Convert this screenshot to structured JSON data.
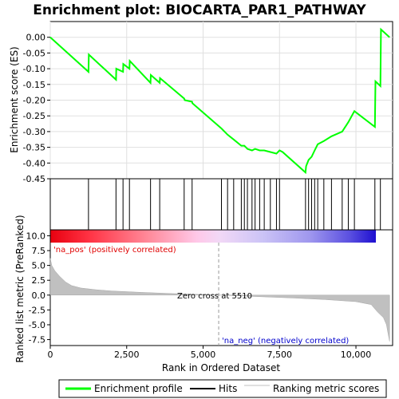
{
  "chart_data": [
    {
      "type": "line",
      "title": "Enrichment plot: BIOCARTA_PAR1_PATHWAY",
      "ylabel": "Enrichment score (ES)",
      "ylim": [
        -0.45,
        0.05
      ],
      "yticks": [
        0.0,
        -0.05,
        -0.1,
        -0.15,
        -0.2,
        -0.25,
        -0.3,
        -0.35,
        -0.4,
        -0.45
      ],
      "ytick_labels": [
        "0.00",
        "-0.05",
        "-0.10",
        "-0.15",
        "-0.20",
        "-0.25",
        "-0.30",
        "-0.35",
        "-0.40",
        "-0.45"
      ],
      "xlim": [
        0,
        11200
      ],
      "grid": true,
      "series": [
        {
          "name": "Enrichment profile",
          "color": "#00ff00",
          "x": [
            0,
            1250,
            1260,
            2150,
            2160,
            2380,
            2390,
            2590,
            2600,
            3280,
            3290,
            3580,
            3590,
            4380,
            4400,
            4640,
            4650,
            5600,
            5800,
            6000,
            6250,
            6350,
            6450,
            6600,
            6700,
            6850,
            7000,
            7200,
            7400,
            7500,
            7600,
            8350,
            8370,
            8450,
            8550,
            8650,
            8750,
            8950,
            9200,
            9550,
            9750,
            9950,
            10620,
            10640,
            10800,
            10820,
            11100
          ],
          "y": [
            0.0,
            -0.11,
            -0.055,
            -0.135,
            -0.1,
            -0.11,
            -0.085,
            -0.1,
            -0.075,
            -0.145,
            -0.12,
            -0.145,
            -0.13,
            -0.195,
            -0.2,
            -0.205,
            -0.21,
            -0.29,
            -0.31,
            -0.325,
            -0.345,
            -0.345,
            -0.355,
            -0.36,
            -0.355,
            -0.36,
            -0.36,
            -0.365,
            -0.37,
            -0.36,
            -0.365,
            -0.43,
            -0.41,
            -0.39,
            -0.38,
            -0.36,
            -0.34,
            -0.33,
            -0.315,
            -0.3,
            -0.27,
            -0.235,
            -0.285,
            -0.14,
            -0.155,
            0.025,
            0.0
          ]
        }
      ]
    },
    {
      "type": "scatter",
      "name": "Hits",
      "hits_x": [
        1250,
        2150,
        2380,
        2590,
        3280,
        3580,
        4380,
        4640,
        5600,
        5800,
        6000,
        6250,
        6350,
        6450,
        6600,
        6700,
        6850,
        7000,
        7200,
        7400,
        7500,
        8350,
        8450,
        8550,
        8650,
        8750,
        8950,
        9200,
        9550,
        9750,
        9950,
        10620,
        10800
      ]
    },
    {
      "type": "area",
      "ylabel": "Ranked list metric (PreRanked)",
      "xlabel": "Rank in Ordered Dataset",
      "ylim": [
        -8.5,
        11
      ],
      "yticks": [
        10.0,
        7.5,
        5.0,
        2.5,
        0.0,
        -2.5,
        -5.0,
        -7.5
      ],
      "ytick_labels": [
        "10.0",
        "7.5",
        "5.0",
        "2.5",
        "0.0",
        "-2.5",
        "-5.0",
        "-7.5"
      ],
      "xticks": [
        0,
        2500,
        5000,
        7500,
        10000
      ],
      "xtick_labels": [
        "0",
        "2,500",
        "5,000",
        "7,500",
        "10,000"
      ],
      "x": [
        0,
        50,
        150,
        300,
        500,
        700,
        1000,
        1500,
        2000,
        3000,
        4000,
        5000,
        5510,
        6000,
        7000,
        8000,
        9000,
        10000,
        10500,
        10700,
        10900,
        11000,
        11050,
        11100
      ],
      "y": [
        6.2,
        5.0,
        4.1,
        3.2,
        2.2,
        1.6,
        1.2,
        0.9,
        0.7,
        0.45,
        0.25,
        0.1,
        0.0,
        -0.1,
        -0.3,
        -0.5,
        -0.75,
        -1.1,
        -1.6,
        -2.8,
        -3.8,
        -5.0,
        -6.5,
        -7.8
      ],
      "annotations": {
        "zero_cross": "Zero cross at 5510",
        "zero_cross_x": 5510,
        "pos_label": "'na_pos' (positively correlated)",
        "neg_label": "'na_neg' (negatively correlated)"
      }
    }
  ],
  "legend": {
    "items": [
      {
        "label": "Enrichment profile",
        "color": "#00ff00"
      },
      {
        "label": "Hits",
        "color": "#000000"
      },
      {
        "label": "Ranking metric scores",
        "color": "#c0c0c0"
      }
    ]
  }
}
